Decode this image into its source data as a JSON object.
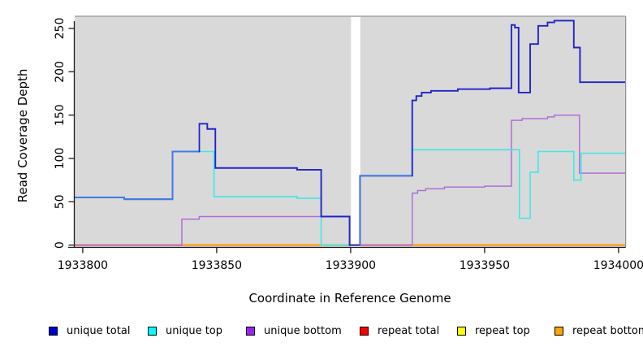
{
  "chart_data": {
    "type": "line",
    "title": "",
    "xlabel": "Coordinate in Reference Genome",
    "ylabel": "Read Coverage Depth",
    "xlim": [
      1933797,
      1934002.5
    ],
    "ylim": [
      0,
      264
    ],
    "grid": false,
    "panel_bg": "#d9d9d9",
    "xticks": [
      1933800,
      1933850,
      1933900,
      1933950,
      1934000
    ],
    "xtick_labels": [
      "1933800",
      "1933850",
      "1933900",
      "1933950",
      "1934000"
    ],
    "yticks": [
      0,
      50,
      100,
      150,
      200,
      250
    ],
    "ytick_labels": [
      "0",
      "50",
      "100",
      "150",
      "200",
      "250"
    ],
    "no_data_gap": {
      "from": 1933900.15,
      "to": 1933903.6
    },
    "series": [
      {
        "name": "unique total",
        "legend_color": "#0000cd",
        "line_color": "#2222cd",
        "overlap_line_color": "#3f7ce8",
        "overlap_ranges": [
          [
            1933797,
            1933843.3
          ],
          [
            1933903.3,
            1933922.8
          ]
        ],
        "segments": [
          [
            [
              1933797,
              55
            ],
            [
              1933815.5,
              53
            ],
            [
              1933833.5,
              108
            ],
            [
              1933843.5,
              140
            ],
            [
              1933846.5,
              134
            ],
            [
              1933849.5,
              89
            ],
            [
              1933880,
              87
            ],
            [
              1933889,
              33
            ],
            [
              1933899.6,
              0
            ],
            [
              1933903.5,
              80
            ],
            [
              1933923,
              167
            ],
            [
              1933924.5,
              172
            ],
            [
              1933926.5,
              176
            ],
            [
              1933930,
              178
            ],
            [
              1933940,
              180
            ],
            [
              1933952,
              181
            ],
            [
              1933960,
              254
            ],
            [
              1933961.3,
              251
            ],
            [
              1933962.7,
              176
            ],
            [
              1933967,
              232
            ],
            [
              1933970,
              253
            ],
            [
              1933973.5,
              257
            ],
            [
              1933976,
              259
            ],
            [
              1933983.3,
              228
            ],
            [
              1933985.6,
              188
            ],
            [
              1934002.5,
              188
            ]
          ]
        ]
      },
      {
        "name": "unique top",
        "legend_color": "#00ffff",
        "line_color": "#40e8e8",
        "segments": [
          [
            [
              1933797,
              55
            ],
            [
              1933815.5,
              53
            ],
            [
              1933833.5,
              108
            ],
            [
              1933849,
              56
            ],
            [
              1933880,
              54
            ],
            [
              1933889,
              0
            ],
            [
              1933899.6,
              0
            ]
          ],
          [
            [
              1933903.5,
              80
            ],
            [
              1933923,
              110
            ],
            [
              1933963,
              31
            ],
            [
              1933967,
              84
            ],
            [
              1933970,
              108
            ],
            [
              1933983.3,
              75
            ],
            [
              1933986,
              106
            ],
            [
              1934002.5,
              106
            ]
          ]
        ]
      },
      {
        "name": "unique bottom",
        "legend_color": "#a020f0",
        "line_color": "#b06fd6",
        "segments": [
          [
            [
              1933797,
              0
            ],
            [
              1933837,
              30
            ],
            [
              1933843.5,
              33
            ],
            [
              1933899.6,
              0
            ],
            [
              1933923,
              60
            ],
            [
              1933925,
              63
            ],
            [
              1933928,
              65
            ],
            [
              1933935,
              67
            ],
            [
              1933950,
              68
            ],
            [
              1933960,
              144
            ],
            [
              1933964,
              146
            ],
            [
              1933973.5,
              148
            ],
            [
              1933976,
              150
            ],
            [
              1933985.4,
              83
            ],
            [
              1934002.5,
              83
            ]
          ]
        ]
      },
      {
        "name": "repeat total",
        "legend_color": "#ff0000",
        "line_color": "#ff0000",
        "segments": [
          [
            [
              1933797,
              0
            ],
            [
              1934002.5,
              0
            ]
          ]
        ]
      },
      {
        "name": "repeat top",
        "legend_color": "#ffff00",
        "line_color": "#ffff00",
        "segments": [
          [
            [
              1933797,
              0
            ],
            [
              1934002.5,
              0
            ]
          ]
        ]
      },
      {
        "name": "repeat bottom",
        "legend_color": "#ffa500",
        "line_color": "#ff9c1c",
        "segments": [
          [
            [
              1933797,
              0
            ],
            [
              1934002.5,
              0
            ]
          ]
        ]
      }
    ],
    "baseline_segments": [
      {
        "from": 1933797,
        "to": 1933837,
        "color": "#d4618c"
      },
      {
        "from": 1933837,
        "to": 1933889,
        "color": "#ff9c1c"
      },
      {
        "from": 1933889,
        "to": 1933899.6,
        "color": "#8ed2a2"
      },
      {
        "from": 1933903.5,
        "to": 1933923,
        "color": "#d4618c"
      },
      {
        "from": 1933923,
        "to": 1934002.5,
        "color": "#ff9c1c"
      }
    ],
    "legend": {
      "position": "bottom",
      "items": [
        {
          "label": "unique total",
          "color": "#0000cd"
        },
        {
          "label": "unique top",
          "color": "#00ffff"
        },
        {
          "label": "unique bottom",
          "color": "#a020f0"
        },
        {
          "label": "repeat total",
          "color": "#ff0000"
        },
        {
          "label": "repeat top",
          "color": "#ffff00"
        },
        {
          "label": "repeat bottom",
          "color": "#ffa500"
        }
      ]
    }
  }
}
